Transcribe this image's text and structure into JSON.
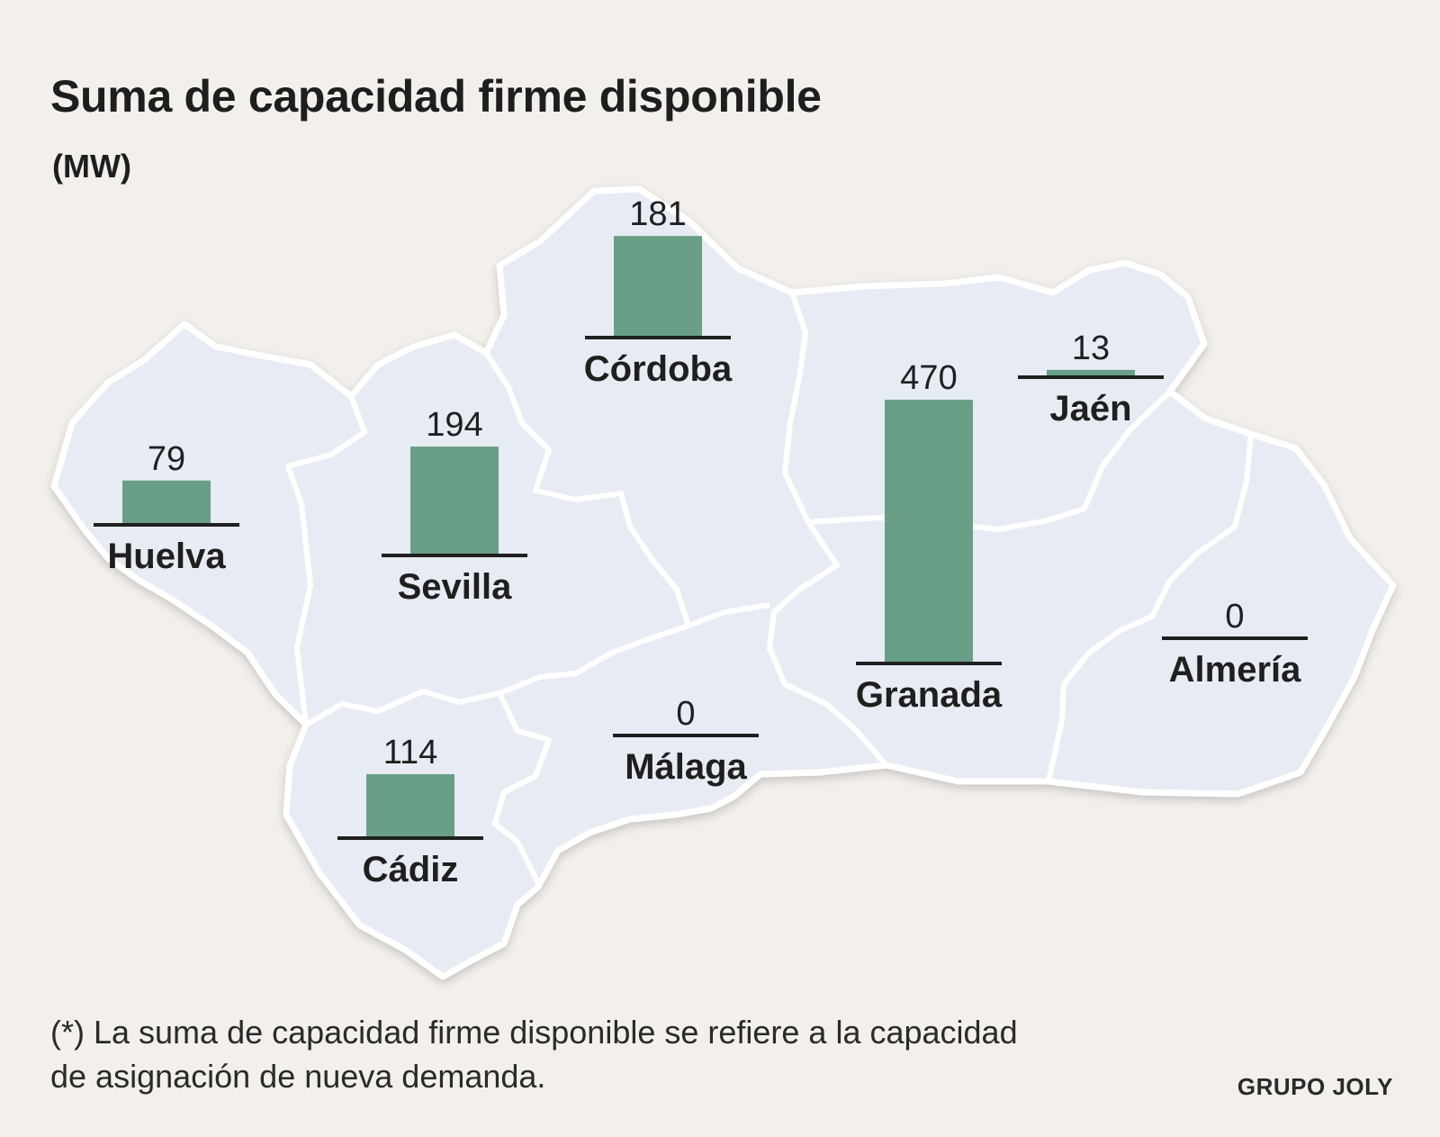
{
  "header": {
    "title": "Suma de capacidad firme disponible",
    "unit": "(MW)"
  },
  "chart_data": {
    "type": "bar",
    "title": "Suma de capacidad firme disponible",
    "ylabel": "(MW)",
    "categories": [
      "Huelva",
      "Sevilla",
      "Córdoba",
      "Cádiz",
      "Málaga",
      "Granada",
      "Jaén",
      "Almería"
    ],
    "values": [
      79,
      194,
      181,
      114,
      0,
      470,
      13,
      0
    ],
    "value_labels": [
      "79",
      "194",
      "181",
      "114",
      "0",
      "470",
      "13",
      "0"
    ],
    "bar_color": "#689f86",
    "map_fill": "#e7ecf4",
    "map_border": "#ffffff"
  },
  "footer": {
    "note_line1": "(*) La suma de capacidad firme disponible se refiere a la capacidad",
    "note_line2": "de asignación de nueva demanda.",
    "credit": "GRUPO JOLY"
  }
}
